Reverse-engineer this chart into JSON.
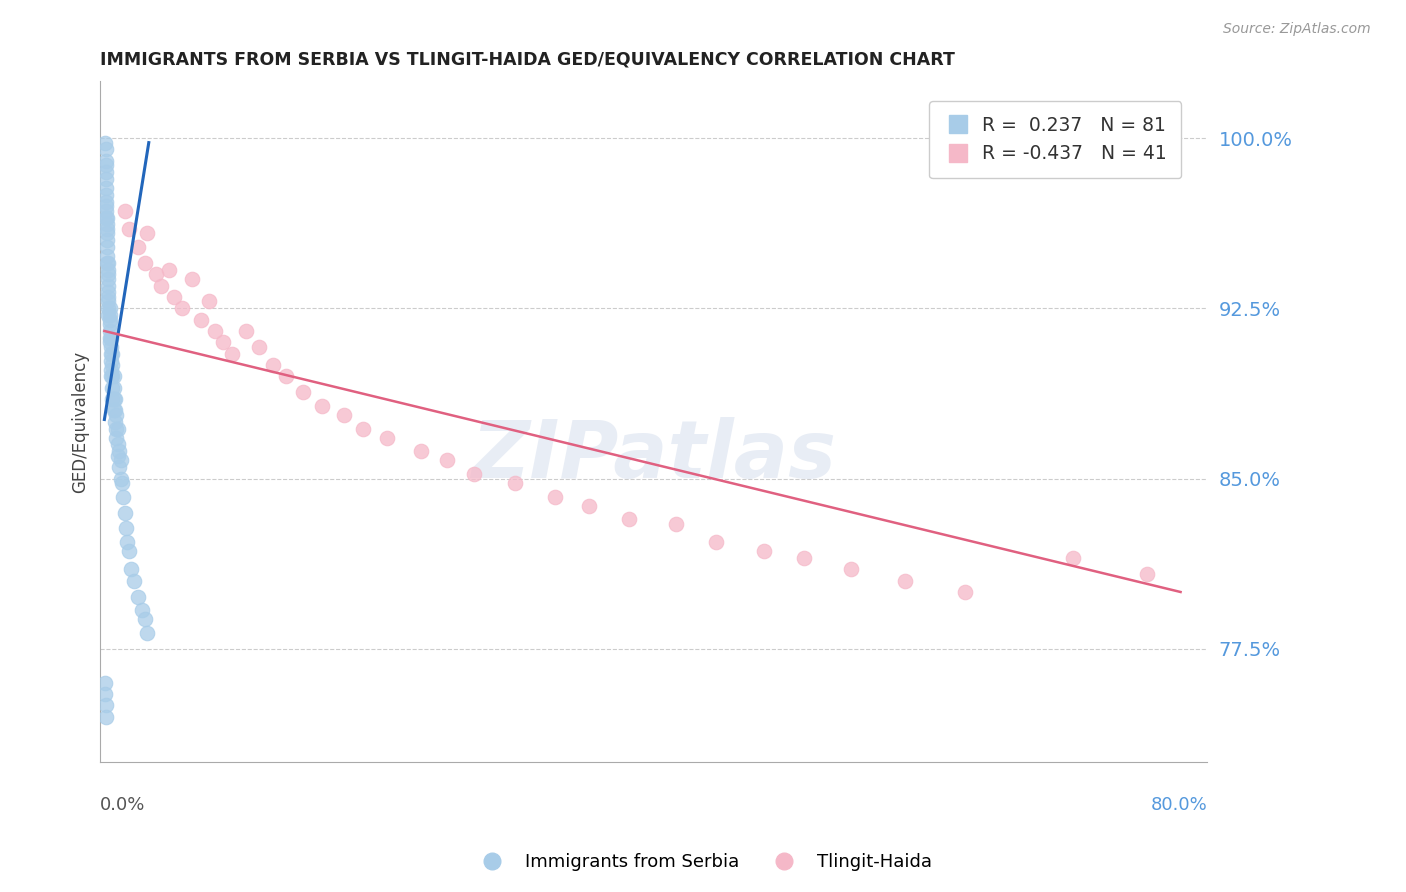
{
  "title": "IMMIGRANTS FROM SERBIA VS TLINGIT-HAIDA GED/EQUIVALENCY CORRELATION CHART",
  "source": "Source: ZipAtlas.com",
  "ylabel": "GED/Equivalency",
  "ytick_positions": [
    0.775,
    0.85,
    0.925,
    1.0
  ],
  "ytick_labels": [
    "77.5%",
    "85.0%",
    "92.5%",
    "100.0%"
  ],
  "ymin": 0.725,
  "ymax": 1.025,
  "xmin": -0.003,
  "xmax": 0.82,
  "blue_color": "#a8cce8",
  "pink_color": "#f5b8c8",
  "trend_blue_color": "#2266bb",
  "trend_pink_color": "#e06080",
  "serbia_x": [
    0.0005,
    0.001,
    0.001,
    0.001,
    0.001,
    0.001,
    0.001,
    0.001,
    0.001,
    0.001,
    0.0015,
    0.0015,
    0.002,
    0.002,
    0.002,
    0.002,
    0.002,
    0.002,
    0.002,
    0.002,
    0.003,
    0.003,
    0.003,
    0.003,
    0.003,
    0.003,
    0.003,
    0.003,
    0.003,
    0.003,
    0.004,
    0.004,
    0.004,
    0.004,
    0.004,
    0.004,
    0.004,
    0.005,
    0.005,
    0.005,
    0.005,
    0.005,
    0.005,
    0.006,
    0.006,
    0.006,
    0.006,
    0.006,
    0.007,
    0.007,
    0.007,
    0.007,
    0.008,
    0.008,
    0.008,
    0.009,
    0.009,
    0.009,
    0.01,
    0.01,
    0.01,
    0.011,
    0.011,
    0.012,
    0.012,
    0.013,
    0.014,
    0.015,
    0.016,
    0.017,
    0.018,
    0.02,
    0.022,
    0.025,
    0.028,
    0.03,
    0.032,
    0.0005,
    0.0005,
    0.001,
    0.001
  ],
  "serbia_y": [
    0.998,
    0.995,
    0.99,
    0.988,
    0.985,
    0.982,
    0.978,
    0.975,
    0.972,
    0.97,
    0.968,
    0.965,
    0.965,
    0.962,
    0.96,
    0.958,
    0.955,
    0.952,
    0.948,
    0.945,
    0.945,
    0.942,
    0.94,
    0.938,
    0.935,
    0.932,
    0.93,
    0.928,
    0.925,
    0.922,
    0.925,
    0.922,
    0.92,
    0.918,
    0.915,
    0.912,
    0.91,
    0.912,
    0.908,
    0.905,
    0.902,
    0.898,
    0.895,
    0.905,
    0.9,
    0.895,
    0.89,
    0.885,
    0.895,
    0.89,
    0.885,
    0.88,
    0.885,
    0.88,
    0.875,
    0.878,
    0.872,
    0.868,
    0.872,
    0.865,
    0.86,
    0.862,
    0.855,
    0.858,
    0.85,
    0.848,
    0.842,
    0.835,
    0.828,
    0.822,
    0.818,
    0.81,
    0.805,
    0.798,
    0.792,
    0.788,
    0.782,
    0.76,
    0.755,
    0.75,
    0.745
  ],
  "tlingit_x": [
    0.015,
    0.018,
    0.025,
    0.03,
    0.032,
    0.038,
    0.042,
    0.048,
    0.052,
    0.058,
    0.065,
    0.072,
    0.078,
    0.082,
    0.088,
    0.095,
    0.105,
    0.115,
    0.125,
    0.135,
    0.148,
    0.162,
    0.178,
    0.192,
    0.21,
    0.235,
    0.255,
    0.275,
    0.305,
    0.335,
    0.36,
    0.39,
    0.425,
    0.455,
    0.49,
    0.52,
    0.555,
    0.595,
    0.64,
    0.72,
    0.775
  ],
  "tlingit_y": [
    0.968,
    0.96,
    0.952,
    0.945,
    0.958,
    0.94,
    0.935,
    0.942,
    0.93,
    0.925,
    0.938,
    0.92,
    0.928,
    0.915,
    0.91,
    0.905,
    0.915,
    0.908,
    0.9,
    0.895,
    0.888,
    0.882,
    0.878,
    0.872,
    0.868,
    0.862,
    0.858,
    0.852,
    0.848,
    0.842,
    0.838,
    0.832,
    0.83,
    0.822,
    0.818,
    0.815,
    0.81,
    0.805,
    0.8,
    0.815,
    0.808
  ],
  "blue_trend_x": [
    0.0,
    0.033
  ],
  "blue_trend_y": [
    0.876,
    0.998
  ],
  "pink_trend_x": [
    0.0,
    0.8
  ],
  "pink_trend_y": [
    0.915,
    0.8
  ]
}
